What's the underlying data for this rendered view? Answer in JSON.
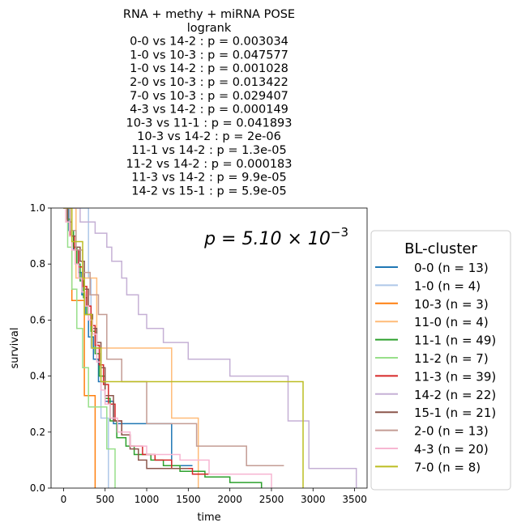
{
  "chart_data": {
    "type": "line",
    "title_lines": [
      "RNA + methy + miRNA POSE",
      "logrank",
      "0-0 vs 14-2 :  p = 0.003034",
      "1-0 vs 10-3 :  p = 0.047577",
      "1-0 vs 14-2 :  p = 0.001028",
      "2-0 vs 10-3 :  p = 0.013422",
      "7-0 vs 10-3 :  p = 0.029407",
      "4-3 vs 14-2 :  p = 0.000149",
      "10-3 vs 11-1 :  p = 0.041893",
      "10-3 vs 14-2 :  p = 2e-06",
      "11-1 vs 14-2 :  p = 1.3e-05",
      "11-2 vs 14-2 :  p = 0.000183",
      "11-3 vs 14-2 :  p = 9.9e-05",
      "14-2 vs 15-1 :  p = 5.9e-05"
    ],
    "xlabel": "time",
    "ylabel": "survival",
    "xlim": [
      -150,
      3650
    ],
    "ylim": [
      0,
      1
    ],
    "xticks": [
      0,
      500,
      1000,
      1500,
      2000,
      2500,
      3000,
      3500
    ],
    "yticks": [
      0.0,
      0.2,
      0.4,
      0.6,
      0.8,
      1.0
    ],
    "annotation": {
      "base": "p = 5.10 × 10",
      "exponent": "−3"
    },
    "legend": {
      "title": "BL-cluster",
      "placement": "right"
    },
    "grid": false,
    "series": [
      {
        "name": "0-0 (n = 13)",
        "color": "#1f77b4",
        "times": [
          60,
          120,
          180,
          220,
          260,
          300,
          360,
          420,
          500,
          600,
          1300,
          1550
        ],
        "surv": [
          0.92,
          0.85,
          0.77,
          0.69,
          0.62,
          0.54,
          0.46,
          0.38,
          0.31,
          0.23,
          0.08,
          0.08
        ]
      },
      {
        "name": "1-0 (n = 4)",
        "color": "#aec7e8",
        "times": [
          300,
          330,
          450,
          540
        ],
        "surv": [
          0.75,
          0.5,
          0.25,
          0.0
        ]
      },
      {
        "name": "10-3 (n = 3)",
        "color": "#ff7f0e",
        "times": [
          100,
          250,
          380
        ],
        "surv": [
          0.67,
          0.33,
          0.0
        ]
      },
      {
        "name": "11-0 (n = 4)",
        "color": "#ffbb78",
        "times": [
          150,
          400,
          1300,
          1620
        ],
        "surv": [
          0.75,
          0.5,
          0.25,
          0.0
        ]
      },
      {
        "name": "11-1 (n = 49)",
        "color": "#2ca02c",
        "times": [
          40,
          80,
          120,
          160,
          200,
          240,
          280,
          330,
          380,
          430,
          500,
          560,
          640,
          750,
          850,
          1050,
          1200,
          1400,
          1700,
          2000,
          2380
        ],
        "surv": [
          0.96,
          0.92,
          0.86,
          0.8,
          0.74,
          0.68,
          0.62,
          0.56,
          0.48,
          0.4,
          0.32,
          0.24,
          0.18,
          0.15,
          0.12,
          0.1,
          0.08,
          0.06,
          0.04,
          0.02,
          0.0
        ]
      },
      {
        "name": "11-2 (n = 7)",
        "color": "#98df8a",
        "times": [
          50,
          100,
          160,
          230,
          300,
          520,
          620
        ],
        "surv": [
          0.86,
          0.71,
          0.57,
          0.43,
          0.29,
          0.14,
          0.0
        ]
      },
      {
        "name": "11-3 (n = 39)",
        "color": "#d62728",
        "times": [
          30,
          80,
          130,
          180,
          230,
          280,
          330,
          380,
          430,
          480,
          540,
          620,
          700,
          800,
          950,
          1100,
          1300,
          1550,
          1800
        ],
        "surv": [
          0.95,
          0.9,
          0.85,
          0.79,
          0.72,
          0.65,
          0.58,
          0.51,
          0.44,
          0.37,
          0.3,
          0.24,
          0.19,
          0.15,
          0.12,
          0.1,
          0.07,
          0.05,
          0.05
        ]
      },
      {
        "name": "14-2 (n = 22)",
        "color": "#c5b0d5",
        "times": [
          200,
          380,
          520,
          580,
          700,
          760,
          900,
          1000,
          1200,
          1500,
          2000,
          2700,
          2950,
          3520
        ],
        "surv": [
          0.95,
          0.91,
          0.86,
          0.81,
          0.75,
          0.69,
          0.62,
          0.57,
          0.52,
          0.46,
          0.4,
          0.24,
          0.07,
          0.0
        ]
      },
      {
        "name": "15-1 (n = 21)",
        "color": "#8c564b",
        "times": [
          50,
          100,
          150,
          200,
          250,
          300,
          350,
          400,
          450,
          500,
          600,
          700,
          800,
          900,
          1000,
          1200,
          1500
        ],
        "surv": [
          0.95,
          0.9,
          0.86,
          0.81,
          0.71,
          0.62,
          0.57,
          0.52,
          0.43,
          0.33,
          0.24,
          0.19,
          0.14,
          0.1,
          0.07,
          0.07,
          0.07
        ]
      },
      {
        "name": "2-0 (n = 13)",
        "color": "#c49c94",
        "times": [
          80,
          150,
          230,
          320,
          420,
          520,
          700,
          1000,
          1600,
          2200,
          2650
        ],
        "surv": [
          0.92,
          0.85,
          0.77,
          0.69,
          0.62,
          0.46,
          0.38,
          0.23,
          0.15,
          0.08,
          0.08
        ]
      },
      {
        "name": "4-3 (n = 20)",
        "color": "#f7b6d2",
        "times": [
          30,
          70,
          100,
          140,
          180,
          220,
          260,
          300,
          350,
          400,
          450,
          500,
          560,
          650,
          800,
          1000,
          1400,
          1750,
          2500
        ],
        "surv": [
          0.95,
          0.9,
          0.85,
          0.8,
          0.75,
          0.7,
          0.65,
          0.6,
          0.55,
          0.45,
          0.35,
          0.3,
          0.25,
          0.2,
          0.15,
          0.12,
          0.1,
          0.05,
          0.0
        ]
      },
      {
        "name": "7-0 (n = 8)",
        "color": "#bcbd22",
        "times": [
          100,
          230,
          250,
          340,
          450,
          2880
        ],
        "surv": [
          0.88,
          0.75,
          0.62,
          0.5,
          0.38,
          0.0
        ]
      }
    ]
  }
}
